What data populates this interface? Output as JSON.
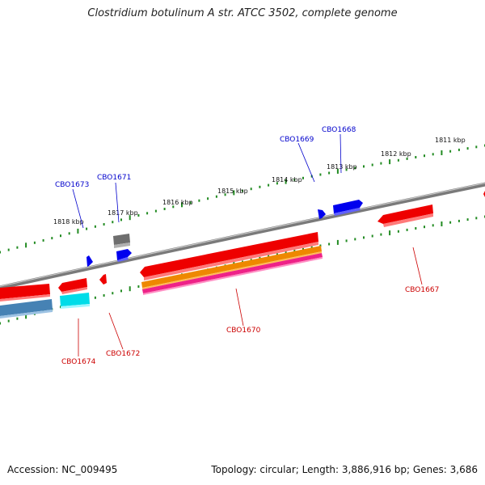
{
  "title": "Clostridium botulinum A str. ATCC 3502, complete genome",
  "footer": {
    "accession": "Accession: NC_009495",
    "summary": "Topology: circular; Length: 3,886,916 bp; Genes: 3,686"
  },
  "scale_labels": [
    "1811 kbp",
    "1812 kbp",
    "1813 kbp",
    "1814 kbp",
    "1815 kbp",
    "1816 kbp",
    "1817 kbp",
    "1818 kbp"
  ],
  "genes": [
    {
      "name": "CBO1667",
      "color": "#cc0000"
    },
    {
      "name": "CBO1668",
      "color": "#0000cc"
    },
    {
      "name": "CBO1669",
      "color": "#0000cc"
    },
    {
      "name": "CBO1670",
      "color": "#cc0000"
    },
    {
      "name": "CBO1671",
      "color": "#0000cc"
    },
    {
      "name": "CBO1672",
      "color": "#cc0000"
    },
    {
      "name": "CBO1673",
      "color": "#0000cc"
    },
    {
      "name": "CBO1674",
      "color": "#cc0000"
    }
  ],
  "colors": {
    "backbone": "#888888",
    "ticks": "#228b22",
    "forward_gene": "#0000ff",
    "reverse_gene": "#ee0000",
    "rna_orange": "#ee8800",
    "rna_pink": "#ee2288",
    "cyan": "#00e5ee",
    "steelblue": "#4682b4",
    "gray": "#777777"
  }
}
